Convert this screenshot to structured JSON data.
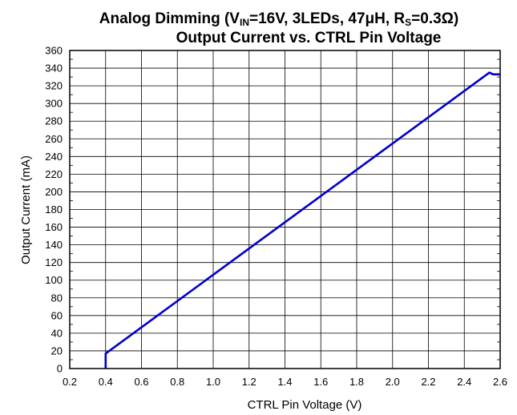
{
  "chart_data": {
    "type": "line",
    "title": {
      "line1_prefix": "Analog Dimming (V",
      "line1_sub1": "IN",
      "line1_mid": "=16V, 3LEDs, 47μH, R",
      "line1_sub2": "S",
      "line1_suffix": "=0.3Ω)",
      "line2": "Output Current vs. CTRL Pin Voltage"
    },
    "xlabel": "CTRL Pin Voltage (V)",
    "ylabel": "Output Current (mA)",
    "xlim": [
      0.2,
      2.6
    ],
    "ylim": [
      0,
      360
    ],
    "xticks": [
      0.2,
      0.4,
      0.6,
      0.8,
      1.0,
      1.2,
      1.4,
      1.6,
      1.8,
      2.0,
      2.2,
      2.4,
      2.6
    ],
    "xtick_labels": [
      "0.2",
      "0.4",
      "0.6",
      "0.8",
      "1.0",
      "1.2",
      "1.4",
      "1.6",
      "1.8",
      "2.0",
      "2.2",
      "2.4",
      "2.6"
    ],
    "yticks": [
      0,
      20,
      40,
      60,
      80,
      100,
      120,
      140,
      160,
      180,
      200,
      220,
      240,
      260,
      280,
      300,
      320,
      340,
      360
    ],
    "yminor_step": 10,
    "grid": true,
    "line_color": "#0000cc",
    "series": [
      {
        "x": [
          0.4,
          0.4,
          2.54,
          2.56,
          2.6
        ],
        "y": [
          0,
          17,
          335,
          333,
          333
        ]
      }
    ]
  }
}
